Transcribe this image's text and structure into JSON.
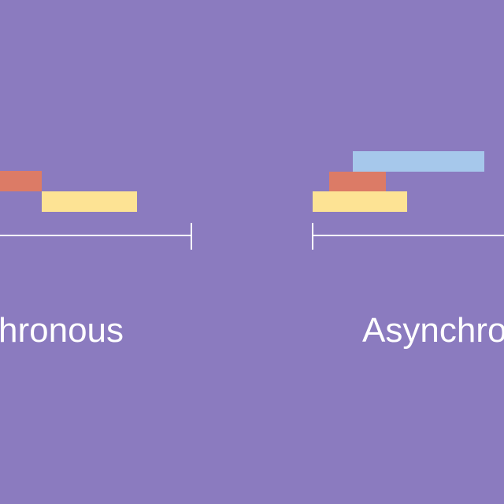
{
  "colors": {
    "background": "#8b7bbf",
    "task_red": "#dc7b66",
    "task_yellow": "#fde394",
    "task_blue": "#a6c8eb",
    "axis": "#ffffff",
    "label": "#ffffff"
  },
  "left_panel": {
    "label": "hronous",
    "tasks": [
      {
        "name": "task-red",
        "color_key": "task_red"
      },
      {
        "name": "task-yellow",
        "color_key": "task_yellow"
      }
    ]
  },
  "right_panel": {
    "label": "Asynchro",
    "tasks": [
      {
        "name": "task-blue",
        "color_key": "task_blue"
      },
      {
        "name": "task-red",
        "color_key": "task_red"
      },
      {
        "name": "task-yellow",
        "color_key": "task_yellow"
      }
    ]
  }
}
